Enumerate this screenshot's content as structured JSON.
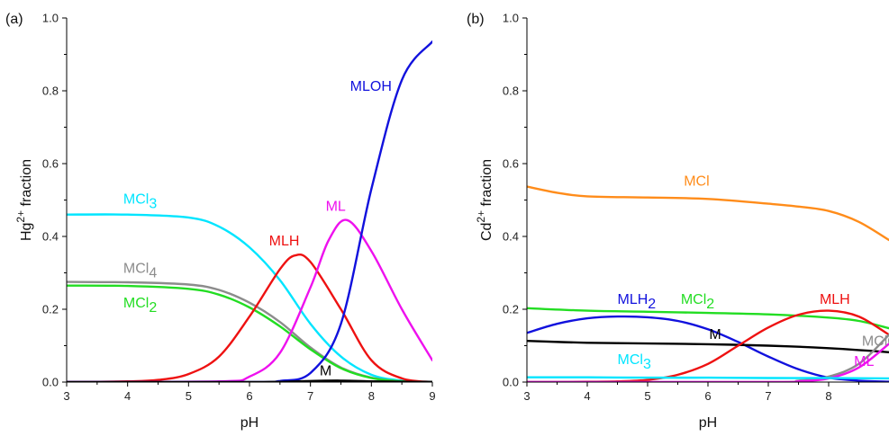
{
  "chart_data": [
    {
      "type": "line",
      "panel_label": "(a)",
      "xlabel": "pH",
      "ylabel": "Hg2+ fraction",
      "ylabel_parts": {
        "base": "Hg",
        "sup": "2+",
        "rest": " fraction"
      },
      "xlim": [
        3,
        9
      ],
      "ylim": [
        0,
        1.0
      ],
      "xticks": [
        3,
        4,
        5,
        6,
        7,
        8,
        9
      ],
      "yticks": [
        0.0,
        0.2,
        0.4,
        0.6,
        0.8,
        1.0
      ],
      "ytick_labels": [
        "0.0",
        "0.2",
        "0.4",
        "0.6",
        "0.8",
        "1.0"
      ],
      "grid": false,
      "legend": "none",
      "series": [
        {
          "color": "#00e5ff",
          "x": [
            3,
            4,
            5,
            5.5,
            6,
            6.5,
            7,
            7.5,
            8,
            8.5,
            9
          ],
          "y": [
            0.46,
            0.46,
            0.452,
            0.427,
            0.37,
            0.28,
            0.16,
            0.07,
            0.02,
            0.004,
            0.001
          ]
        },
        {
          "color": "#8c8c8c",
          "x": [
            3,
            4,
            5,
            5.5,
            6,
            6.5,
            7,
            7.5,
            8,
            8.5,
            9
          ],
          "y": [
            0.275,
            0.274,
            0.268,
            0.253,
            0.218,
            0.165,
            0.095,
            0.04,
            0.012,
            0.002,
            0.0
          ]
        },
        {
          "color": "#22dd22",
          "x": [
            3,
            4,
            5,
            5.5,
            6,
            6.5,
            7,
            7.5,
            8,
            8.5,
            9
          ],
          "y": [
            0.265,
            0.264,
            0.256,
            0.24,
            0.205,
            0.153,
            0.09,
            0.038,
            0.011,
            0.002,
            0.0
          ]
        },
        {
          "color": "#ee1111",
          "x": [
            3,
            4,
            4.5,
            5,
            5.5,
            6,
            6.5,
            6.75,
            7,
            7.5,
            8,
            8.5,
            9
          ],
          "y": [
            0.0,
            0.002,
            0.006,
            0.022,
            0.07,
            0.18,
            0.31,
            0.348,
            0.33,
            0.2,
            0.06,
            0.01,
            0.0
          ]
        },
        {
          "color": "#ee11ee",
          "x": [
            3,
            5.5,
            6,
            6.5,
            7,
            7.3,
            7.6,
            8,
            8.5,
            9
          ],
          "y": [
            0.0,
            0.002,
            0.015,
            0.08,
            0.26,
            0.39,
            0.445,
            0.36,
            0.2,
            0.06
          ]
        },
        {
          "color": "#1111dd",
          "x": [
            3,
            6,
            6.5,
            7,
            7.5,
            8,
            8.5,
            9
          ],
          "y": [
            0.0,
            0.0,
            0.003,
            0.025,
            0.16,
            0.53,
            0.83,
            0.935
          ]
        },
        {
          "color": "#000000",
          "x": [
            3,
            6,
            7,
            7.5,
            8,
            8.5,
            9
          ],
          "y": [
            0.0,
            0.0,
            0.003,
            0.004,
            0.002,
            0.001,
            0.0
          ]
        }
      ],
      "annotations": [
        {
          "text": "MLOH",
          "x": 7.65,
          "y": 0.8,
          "color": "#1111dd"
        },
        {
          "text": "MCl",
          "sub": "3",
          "x": 3.93,
          "y": 0.49,
          "color": "#00e5ff"
        },
        {
          "text": "ML",
          "x": 7.25,
          "y": 0.47,
          "color": "#ee11ee"
        },
        {
          "text": "MLH",
          "x": 6.32,
          "y": 0.375,
          "color": "#ee1111"
        },
        {
          "text": "MCl",
          "sub": "4",
          "x": 3.93,
          "y": 0.3,
          "color": "#8c8c8c"
        },
        {
          "text": "MCl",
          "sub": "2",
          "x": 3.93,
          "y": 0.205,
          "color": "#22dd22"
        },
        {
          "text": "M",
          "x": 7.15,
          "y": 0.018,
          "color": "#000000"
        }
      ]
    },
    {
      "type": "line",
      "panel_label": "(b)",
      "xlabel": "pH",
      "ylabel": "Cd2+ fraction",
      "ylabel_parts": {
        "base": "Cd",
        "sup": "2+",
        "rest": " fraction"
      },
      "xlim": [
        3,
        9
      ],
      "ylim": [
        0,
        1.0
      ],
      "xticks": [
        3,
        4,
        5,
        6,
        7,
        8
      ],
      "yticks": [
        0.0,
        0.2,
        0.4,
        0.6,
        0.8,
        1.0
      ],
      "ytick_labels": [
        "0.0",
        "0.2",
        "0.4",
        "0.6",
        "0.8",
        "1.0"
      ],
      "grid": false,
      "legend": "none",
      "series": [
        {
          "color": "#ff8c1a",
          "x": [
            3,
            3.5,
            4,
            5,
            6,
            7,
            7.5,
            8,
            8.5,
            9
          ],
          "y": [
            0.537,
            0.52,
            0.51,
            0.507,
            0.503,
            0.49,
            0.482,
            0.47,
            0.44,
            0.39
          ]
        },
        {
          "color": "#22dd22",
          "x": [
            3,
            4,
            5,
            6,
            7,
            8,
            8.5,
            9
          ],
          "y": [
            0.203,
            0.196,
            0.193,
            0.19,
            0.186,
            0.177,
            0.168,
            0.148
          ]
        },
        {
          "color": "#1111dd",
          "x": [
            3,
            3.5,
            4,
            4.5,
            5,
            5.5,
            6,
            6.5,
            7,
            7.5,
            8,
            8.5,
            9
          ],
          "y": [
            0.135,
            0.16,
            0.175,
            0.18,
            0.178,
            0.168,
            0.145,
            0.11,
            0.07,
            0.035,
            0.012,
            0.004,
            0.001
          ]
        },
        {
          "color": "#000000",
          "x": [
            3,
            4,
            5,
            6,
            7,
            7.5,
            8,
            8.5,
            9
          ],
          "y": [
            0.113,
            0.108,
            0.106,
            0.104,
            0.1,
            0.097,
            0.093,
            0.088,
            0.082
          ]
        },
        {
          "color": "#ee1111",
          "x": [
            3,
            4,
            4.5,
            5,
            5.5,
            6,
            6.5,
            7,
            7.5,
            8,
            8.5,
            9
          ],
          "y": [
            0.0,
            0.001,
            0.002,
            0.006,
            0.02,
            0.05,
            0.1,
            0.15,
            0.185,
            0.196,
            0.18,
            0.13
          ]
        },
        {
          "color": "#8c8c8c",
          "x": [
            3,
            7,
            7.5,
            8,
            8.5,
            9
          ],
          "y": [
            0.0,
            0.0,
            0.004,
            0.015,
            0.05,
            0.13
          ]
        },
        {
          "color": "#ee11ee",
          "x": [
            3,
            7,
            7.5,
            8,
            8.5,
            9
          ],
          "y": [
            0.0,
            0.0,
            0.002,
            0.01,
            0.04,
            0.105
          ]
        },
        {
          "color": "#00e5ff",
          "x": [
            3,
            4,
            5,
            6,
            7,
            8,
            9
          ],
          "y": [
            0.013,
            0.013,
            0.012,
            0.012,
            0.011,
            0.011,
            0.01
          ]
        }
      ],
      "annotations": [
        {
          "text": "MCl",
          "x": 5.6,
          "y": 0.54,
          "color": "#ff8c1a"
        },
        {
          "text": "MLH",
          "sub": "2",
          "x": 4.5,
          "y": 0.215,
          "color": "#1111dd"
        },
        {
          "text": "MCl",
          "sub": "2",
          "x": 5.55,
          "y": 0.215,
          "color": "#22dd22"
        },
        {
          "text": "MLH",
          "x": 7.85,
          "y": 0.215,
          "color": "#ee1111"
        },
        {
          "text": "M",
          "x": 6.02,
          "y": 0.118,
          "color": "#000000"
        },
        {
          "text": "MClOH",
          "x": 8.55,
          "y": 0.1,
          "color": "#8c8c8c"
        },
        {
          "text": "MCl",
          "sub": "3",
          "x": 4.5,
          "y": 0.05,
          "color": "#00e5ff"
        },
        {
          "text": "ML",
          "x": 8.42,
          "y": 0.045,
          "color": "#ee11ee"
        }
      ]
    }
  ]
}
